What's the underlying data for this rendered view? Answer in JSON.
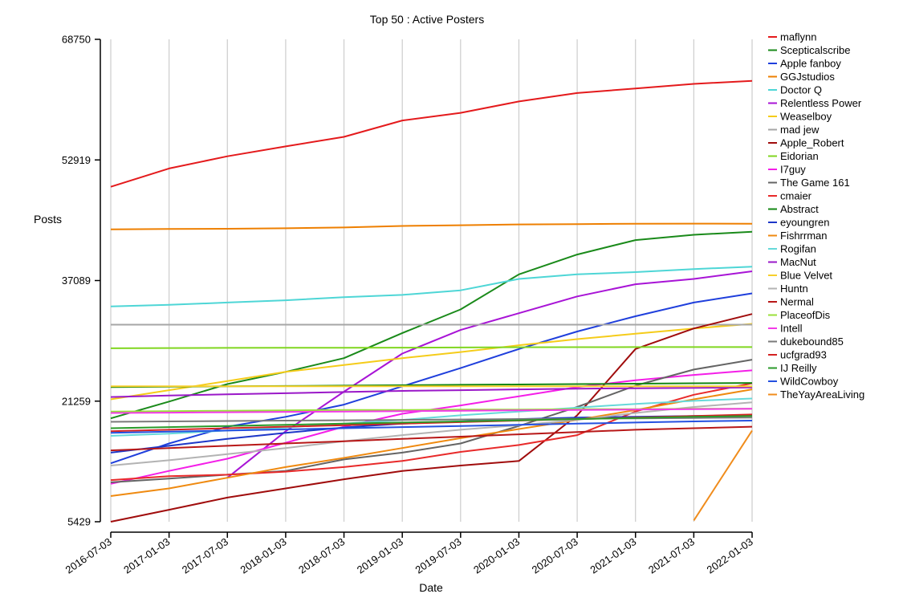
{
  "chart_data": {
    "type": "line",
    "title": "Top 50 : Active Posters",
    "xlabel": "Date",
    "ylabel": "Posts",
    "x_ticks": [
      "2016-07-03",
      "2017-01-03",
      "2017-07-03",
      "2018-01-03",
      "2018-07-03",
      "2019-01-03",
      "2019-07-03",
      "2020-01-03",
      "2020-07-03",
      "2021-01-03",
      "2021-07-03",
      "2022-01-03"
    ],
    "y_ticks": [
      5429,
      21259,
      37089,
      52919,
      68750
    ],
    "ylim": [
      5429,
      68750
    ],
    "grid": "vertical",
    "legend_position": "right",
    "series": [
      {
        "name": "maflynn",
        "color": "#e41a1c",
        "values": [
          49400,
          51800,
          53400,
          54700,
          55950,
          58100,
          59100,
          60600,
          61700,
          62300,
          62900,
          63300
        ]
      },
      {
        "name": "Scepticalscribe",
        "color": "#1a8a1a",
        "values": [
          19000,
          21200,
          23500,
          25100,
          26900,
          30200,
          33300,
          37900,
          40500,
          42400,
          43100,
          43500
        ]
      },
      {
        "name": "Apple fanboy",
        "color": "#1f3fdc",
        "values": [
          13100,
          15700,
          17900,
          19200,
          20800,
          23200,
          25600,
          28100,
          30400,
          32400,
          34200,
          35400
        ]
      },
      {
        "name": "GGJstudios",
        "color": "#ee7f00",
        "values": [
          43800,
          43850,
          43880,
          43950,
          44050,
          44250,
          44350,
          44450,
          44500,
          44550,
          44560,
          44550
        ]
      },
      {
        "name": "Doctor Q",
        "color": "#4ed6d6",
        "values": [
          33700,
          33900,
          34200,
          34500,
          34900,
          35200,
          35800,
          37300,
          37900,
          38200,
          38600,
          38900
        ]
      },
      {
        "name": "Relentless Power",
        "color": "#a814d6",
        "values": [
          null,
          null,
          11200,
          17300,
          22500,
          27500,
          30600,
          32800,
          35000,
          36600,
          37300,
          38300
        ]
      },
      {
        "name": "Weaselboy",
        "color": "#f5cc1a",
        "values": [
          21500,
          22700,
          23900,
          25100,
          26000,
          26900,
          27700,
          28600,
          29400,
          30100,
          30800,
          31400
        ]
      },
      {
        "name": "mad jew",
        "color": "#a6a6a6",
        "values": [
          31300,
          31300,
          31300,
          31300,
          31300,
          31300,
          31300,
          31300,
          31300,
          31300,
          31300,
          31300
        ]
      },
      {
        "name": "Apple_Robert",
        "color": "#a00c0c",
        "values": [
          5429,
          7000,
          8600,
          9800,
          11000,
          12100,
          12800,
          13400,
          19400,
          28100,
          30800,
          32700
        ]
      },
      {
        "name": "Eidorian",
        "color": "#80d620",
        "values": [
          28200,
          28230,
          28250,
          28260,
          28270,
          28280,
          28300,
          28330,
          28340,
          28350,
          28350,
          28350
        ]
      },
      {
        "name": "I7guy",
        "color": "#f41ee8",
        "values": [
          10400,
          12100,
          13700,
          15800,
          17900,
          19600,
          20700,
          21900,
          23100,
          24000,
          24700,
          25300
        ]
      },
      {
        "name": "The Game 161",
        "color": "#646464",
        "values": [
          10600,
          11100,
          11600,
          12100,
          13600,
          14500,
          15700,
          18000,
          20500,
          23300,
          25400,
          26700
        ]
      },
      {
        "name": "cmaier",
        "color": "#e82a2a",
        "values": [
          10900,
          11400,
          11600,
          12000,
          12600,
          13400,
          14600,
          15500,
          16800,
          19900,
          22100,
          23600
        ]
      },
      {
        "name": "Abstract",
        "color": "#138713",
        "values": [
          23100,
          23150,
          23200,
          23250,
          23300,
          23350,
          23400,
          23450,
          23500,
          23550,
          23600,
          23650
        ]
      },
      {
        "name": "eyoungren",
        "color": "#1d37c8",
        "values": [
          14500,
          15400,
          16300,
          17100,
          17800,
          18300,
          18600,
          18900,
          19100,
          19200,
          19300,
          19400
        ]
      },
      {
        "name": "Fishrrman",
        "color": "#ef8a10",
        "values": [
          8800,
          9800,
          11200,
          12600,
          13800,
          15100,
          16400,
          17600,
          18800,
          20100,
          21500,
          22800
        ]
      },
      {
        "name": "Rogifan",
        "color": "#66d9d9",
        "values": [
          16700,
          17000,
          17400,
          17800,
          18300,
          18800,
          19400,
          19900,
          20400,
          20900,
          21300,
          21600
        ]
      },
      {
        "name": "MacNut",
        "color": "#9a18c8",
        "values": [
          21800,
          22000,
          22150,
          22300,
          22450,
          22600,
          22700,
          22800,
          22900,
          22950,
          23000,
          23050
        ]
      },
      {
        "name": "Blue Velvet",
        "color": "#f7cf2c",
        "values": [
          23200,
          23200,
          23200,
          23200,
          23200,
          23200,
          23200,
          23200,
          23200,
          23200,
          23200,
          23200
        ]
      },
      {
        "name": "Huntn",
        "color": "#b3b3b3",
        "values": [
          12800,
          13500,
          14300,
          15100,
          16000,
          16800,
          17500,
          18100,
          18800,
          19700,
          20500,
          21100
        ]
      },
      {
        "name": "Nermal",
        "color": "#b81818",
        "values": [
          14800,
          15100,
          15400,
          15700,
          16000,
          16300,
          16600,
          16900,
          17200,
          17500,
          17700,
          17900
        ]
      },
      {
        "name": "PlaceofDis",
        "color": "#9ae03a",
        "values": [
          19900,
          19950,
          20000,
          20050,
          20100,
          20100,
          20150,
          20150,
          20200,
          20200,
          20250,
          20250
        ]
      },
      {
        "name": "Intell",
        "color": "#f33ae8",
        "values": [
          19700,
          19750,
          19800,
          19850,
          19900,
          19950,
          20000,
          20050,
          20100,
          20150,
          20200,
          20250
        ]
      },
      {
        "name": "dukebound85",
        "color": "#7a7a7a",
        "values": [
          18550,
          18600,
          18650,
          18700,
          18750,
          18800,
          18850,
          18900,
          18950,
          19000,
          19050,
          19100
        ]
      },
      {
        "name": "ucfgrad93",
        "color": "#d42222",
        "values": [
          17300,
          17500,
          17700,
          17900,
          18100,
          18300,
          18500,
          18700,
          18900,
          19100,
          19300,
          19500
        ]
      },
      {
        "name": "IJ Reilly",
        "color": "#2a9a2a",
        "values": [
          17700,
          17850,
          18000,
          18150,
          18300,
          18450,
          18600,
          18750,
          18900,
          19050,
          19200,
          19300
        ]
      },
      {
        "name": "WildCowboy",
        "color": "#2450e0",
        "values": [
          17100,
          17250,
          17400,
          17550,
          17700,
          17850,
          18000,
          18150,
          18300,
          18450,
          18600,
          18700
        ]
      },
      {
        "name": "TheYayAreaLiving",
        "color": "#f08c1c",
        "values": [
          null,
          null,
          null,
          null,
          null,
          null,
          null,
          null,
          null,
          null,
          5600,
          17400
        ]
      }
    ]
  }
}
